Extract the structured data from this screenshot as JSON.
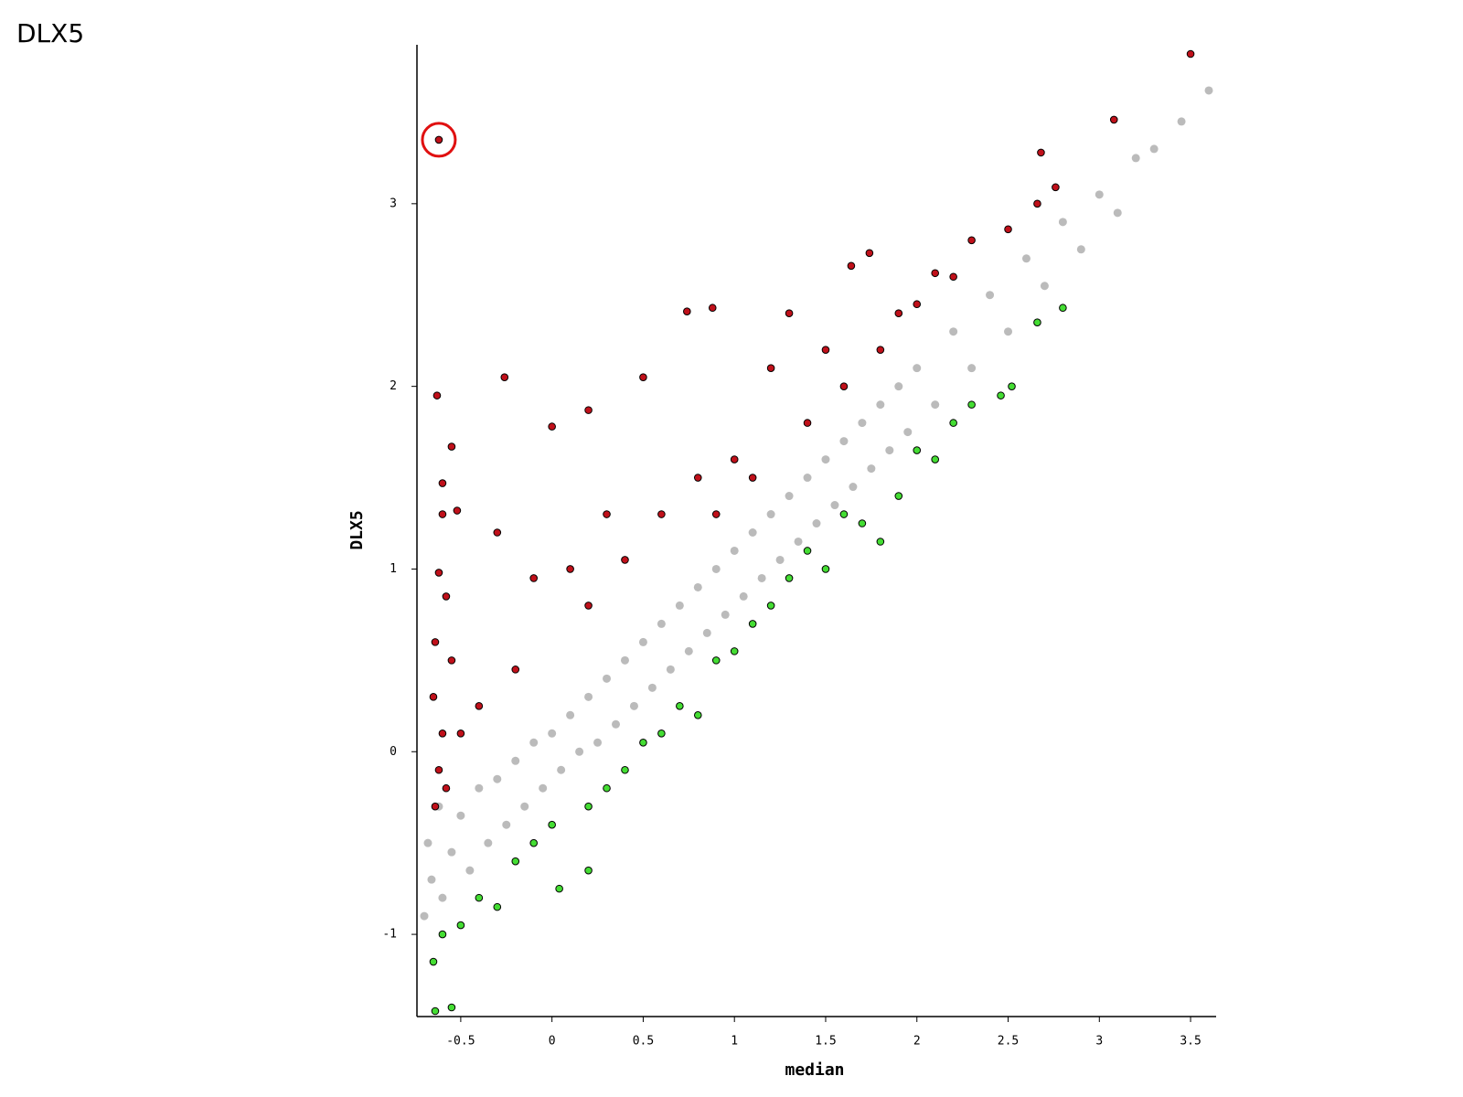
{
  "chart_data": {
    "type": "scatter",
    "title": "DLX5",
    "x_label": "median",
    "y_label": "DLX5",
    "xlim": [
      -0.74,
      3.64
    ],
    "ylim": [
      -1.45,
      3.87
    ],
    "xticks": [
      -0.5,
      0,
      0.5,
      1,
      1.5,
      2,
      2.5,
      3,
      3.5
    ],
    "yticks": [
      -1,
      0,
      1,
      2,
      3
    ],
    "grid": false,
    "series": [
      {
        "color": "#bbbbbb",
        "x": [
          -0.7,
          -0.68,
          -0.66,
          -0.62,
          -0.6,
          -0.55,
          -0.5,
          -0.45,
          -0.4,
          -0.35,
          -0.3,
          -0.25,
          -0.2,
          -0.15,
          -0.1,
          -0.05,
          0,
          0.05,
          0.1,
          0.15,
          0.2,
          0.25,
          0.3,
          0.35,
          0.4,
          0.45,
          0.5,
          0.55,
          0.6,
          0.65,
          0.7,
          0.75,
          0.8,
          0.85,
          0.9,
          0.95,
          1.0,
          1.05,
          1.1,
          1.15,
          1.2,
          1.25,
          1.3,
          1.35,
          1.4,
          1.45,
          1.5,
          1.55,
          1.6,
          1.65,
          1.7,
          1.75,
          1.8,
          1.85,
          1.9,
          1.95,
          2.0,
          2.1,
          2.2,
          2.3,
          2.4,
          2.5,
          2.6,
          2.7,
          2.8,
          2.9,
          3.0,
          3.1,
          3.2,
          3.3,
          3.45,
          3.6
        ],
        "values": [
          -0.9,
          -0.5,
          -0.7,
          -0.3,
          -0.8,
          -0.55,
          -0.35,
          -0.65,
          -0.2,
          -0.5,
          -0.15,
          -0.4,
          -0.05,
          -0.3,
          0.05,
          -0.2,
          0.1,
          -0.1,
          0.2,
          0,
          0.3,
          0.05,
          0.4,
          0.15,
          0.5,
          0.25,
          0.6,
          0.35,
          0.7,
          0.45,
          0.8,
          0.55,
          0.9,
          0.65,
          1.0,
          0.75,
          1.1,
          0.85,
          1.2,
          0.95,
          1.3,
          1.05,
          1.4,
          1.15,
          1.5,
          1.25,
          1.6,
          1.35,
          1.7,
          1.45,
          1.8,
          1.55,
          1.9,
          1.65,
          2.0,
          1.75,
          2.1,
          1.9,
          2.3,
          2.1,
          2.5,
          2.3,
          2.7,
          2.55,
          2.9,
          2.75,
          3.05,
          2.95,
          3.25,
          3.3,
          3.45,
          3.62
        ]
      },
      {
        "color": "#c0101a",
        "x": [
          -0.62,
          -0.63,
          -0.6,
          -0.55,
          -0.6,
          -0.52,
          -0.62,
          -0.58,
          -0.64,
          -0.55,
          -0.65,
          -0.6,
          -0.62,
          -0.58,
          -0.64,
          -0.5,
          -0.4,
          -0.3,
          -0.26,
          -0.2,
          -0.1,
          0,
          0.1,
          0.2,
          0.2,
          0.3,
          0.4,
          0.5,
          0.6,
          0.74,
          0.88,
          0.8,
          0.9,
          1.0,
          1.1,
          1.2,
          1.3,
          1.4,
          1.5,
          1.6,
          1.64,
          1.74,
          1.8,
          1.9,
          2.0,
          2.1,
          2.2,
          2.3,
          2.5,
          2.66,
          2.68,
          2.76,
          3.08,
          3.5
        ],
        "values": [
          3.35,
          1.95,
          1.47,
          1.67,
          1.3,
          1.32,
          0.98,
          0.85,
          0.6,
          0.5,
          0.3,
          0.1,
          -0.1,
          -0.2,
          -0.3,
          0.1,
          0.25,
          1.2,
          2.05,
          0.45,
          0.95,
          1.78,
          1.0,
          0.8,
          1.87,
          1.3,
          1.05,
          2.05,
          1.3,
          2.41,
          2.43,
          1.5,
          1.3,
          1.6,
          1.5,
          2.1,
          2.4,
          1.8,
          2.2,
          2.0,
          2.66,
          2.73,
          2.2,
          2.4,
          2.45,
          2.62,
          2.6,
          2.8,
          2.86,
          3.0,
          3.28,
          3.09,
          3.46,
          3.82
        ]
      },
      {
        "color": "#44dd33",
        "x": [
          -0.65,
          -0.64,
          -0.55,
          -0.6,
          -0.5,
          -0.4,
          -0.3,
          -0.2,
          -0.1,
          0,
          0.04,
          0.2,
          0.2,
          0.3,
          0.4,
          0.5,
          0.6,
          0.7,
          0.8,
          0.9,
          1.0,
          1.1,
          1.2,
          1.3,
          1.4,
          1.5,
          1.6,
          1.7,
          1.8,
          1.9,
          2.0,
          2.1,
          2.2,
          2.3,
          2.46,
          2.52,
          2.66,
          2.8
        ],
        "values": [
          -1.15,
          -1.42,
          -1.4,
          -1.0,
          -0.95,
          -0.8,
          -0.85,
          -0.6,
          -0.5,
          -0.4,
          -0.75,
          -0.65,
          -0.3,
          -0.2,
          -0.1,
          0.05,
          0.1,
          0.25,
          0.2,
          0.5,
          0.55,
          0.7,
          0.8,
          0.95,
          1.1,
          1.0,
          1.3,
          1.25,
          1.15,
          1.4,
          1.65,
          1.6,
          1.8,
          1.9,
          1.95,
          2.0,
          2.35,
          2.43
        ]
      }
    ]
  }
}
